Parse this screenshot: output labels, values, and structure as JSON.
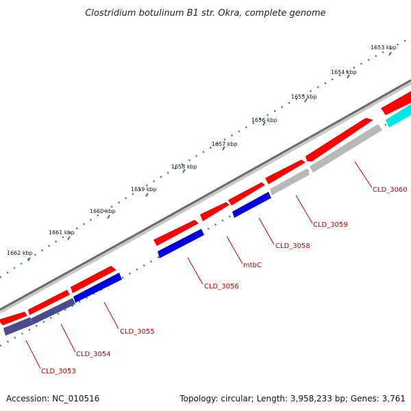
{
  "title": "Clostridium botulinum B1 str. Okra, complete genome",
  "footer": {
    "accession": "Accession: NC_010516",
    "summary": "Topology: circular; Length: 3,958,233 bp; Genes: 3,761"
  },
  "ticks": [
    "1653 kbp",
    "1654 kbp",
    "1655 kbp",
    "1656 kbp",
    "1657 kbp",
    "1658 kbp",
    "1659 kbp",
    "1660 kbp",
    "1661 kbp",
    "1662 kbp"
  ],
  "gene_labels": [
    "CLD_3060",
    "CLD_3059",
    "CLD_3058",
    "mtbC",
    "CLD_3056",
    "CLD_3055",
    "CLD_3054",
    "CLD_3053"
  ],
  "colors": {
    "forward_gene": "#ff0000",
    "reverse_blue": "#0000dd",
    "reverse_navy": "#4a4a8c",
    "reverse_gray": "#b8b8b8",
    "reverse_cyan": "#00e5e5",
    "backbone": "#888888",
    "tick_marks": "#2a8a2a",
    "label_text": "#c00000"
  }
}
